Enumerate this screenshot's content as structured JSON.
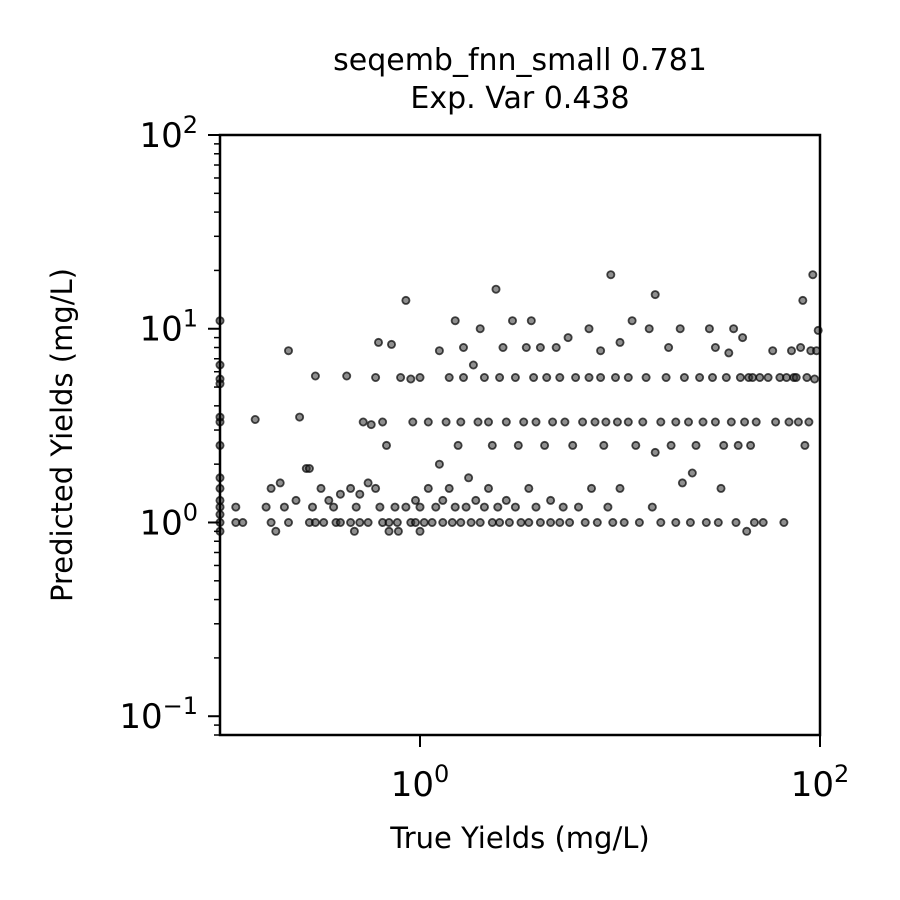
{
  "chart_data": {
    "type": "scatter",
    "title_line1": "seqemb_fnn_small 0.781",
    "title_line2": "Exp. Var 0.438",
    "xlabel": "True Yields (mg/L)",
    "ylabel": "Predicted Yields (mg/L)",
    "xscale": "log",
    "yscale": "log",
    "xlim": [
      0.1,
      100
    ],
    "ylim": [
      0.08,
      100
    ],
    "x_ticks": [
      {
        "base": "10",
        "exp": "0",
        "value": 1
      },
      {
        "base": "10",
        "exp": "2",
        "value": 100
      }
    ],
    "y_ticks": [
      {
        "base": "10",
        "exp": "−1",
        "value": 0.1
      },
      {
        "base": "10",
        "exp": "0",
        "value": 1
      },
      {
        "base": "10",
        "exp": "1",
        "value": 10
      },
      {
        "base": "10",
        "exp": "2",
        "value": 100
      }
    ],
    "grid": false,
    "marker_color": "#000000",
    "points": [
      [
        0.1,
        1.0
      ],
      [
        0.1,
        1.1
      ],
      [
        0.1,
        1.2
      ],
      [
        0.1,
        0.9
      ],
      [
        0.1,
        1.3
      ],
      [
        0.1,
        1.5
      ],
      [
        0.1,
        1.7
      ],
      [
        0.1,
        2.5
      ],
      [
        0.1,
        3.3
      ],
      [
        0.1,
        3.5
      ],
      [
        0.1,
        5.5
      ],
      [
        0.1,
        5.2
      ],
      [
        0.1,
        6.5
      ],
      [
        0.1,
        11.0
      ],
      [
        0.12,
        1.0
      ],
      [
        0.12,
        1.2
      ],
      [
        0.13,
        1.0
      ],
      [
        0.15,
        3.4
      ],
      [
        0.17,
        1.2
      ],
      [
        0.18,
        1.0
      ],
      [
        0.19,
        0.9
      ],
      [
        0.18,
        1.5
      ],
      [
        0.2,
        1.6
      ],
      [
        0.21,
        1.2
      ],
      [
        0.22,
        7.7
      ],
      [
        0.22,
        1.0
      ],
      [
        0.24,
        1.3
      ],
      [
        0.25,
        3.5
      ],
      [
        0.27,
        1.9
      ],
      [
        0.28,
        1.9
      ],
      [
        0.28,
        1.0
      ],
      [
        0.29,
        1.2
      ],
      [
        0.3,
        1.0
      ],
      [
        0.3,
        5.7
      ],
      [
        0.32,
        1.5
      ],
      [
        0.33,
        1.0
      ],
      [
        0.35,
        1.3
      ],
      [
        0.37,
        1.2
      ],
      [
        0.38,
        1.0
      ],
      [
        0.4,
        1.4
      ],
      [
        0.4,
        1.0
      ],
      [
        0.43,
        5.7
      ],
      [
        0.45,
        1.5
      ],
      [
        0.45,
        1.0
      ],
      [
        0.47,
        0.9
      ],
      [
        0.48,
        1.2
      ],
      [
        0.5,
        1.0
      ],
      [
        0.5,
        1.4
      ],
      [
        0.52,
        3.3
      ],
      [
        0.55,
        1.6
      ],
      [
        0.55,
        1.0
      ],
      [
        0.57,
        3.2
      ],
      [
        0.6,
        5.6
      ],
      [
        0.6,
        1.5
      ],
      [
        0.62,
        8.5
      ],
      [
        0.63,
        1.2
      ],
      [
        0.65,
        1.0
      ],
      [
        0.65,
        3.3
      ],
      [
        0.68,
        2.5
      ],
      [
        0.7,
        1.0
      ],
      [
        0.7,
        0.9
      ],
      [
        0.72,
        8.3
      ],
      [
        0.75,
        1.2
      ],
      [
        0.77,
        1.0
      ],
      [
        0.78,
        0.9
      ],
      [
        0.8,
        5.6
      ],
      [
        0.85,
        1.2
      ],
      [
        0.85,
        14.0
      ],
      [
        0.9,
        1.0
      ],
      [
        0.9,
        5.5
      ],
      [
        0.92,
        3.3
      ],
      [
        0.95,
        1.3
      ],
      [
        0.95,
        1.0
      ],
      [
        1.0,
        1.2
      ],
      [
        1.0,
        0.9
      ],
      [
        1.0,
        5.6
      ],
      [
        1.05,
        1.0
      ],
      [
        1.1,
        1.5
      ],
      [
        1.1,
        3.3
      ],
      [
        1.15,
        1.0
      ],
      [
        1.2,
        1.2
      ],
      [
        1.25,
        2.0
      ],
      [
        1.25,
        7.7
      ],
      [
        1.3,
        1.0
      ],
      [
        1.3,
        1.3
      ],
      [
        1.35,
        3.3
      ],
      [
        1.4,
        5.6
      ],
      [
        1.4,
        1.5
      ],
      [
        1.45,
        1.0
      ],
      [
        1.5,
        1.2
      ],
      [
        1.5,
        11.0
      ],
      [
        1.55,
        2.5
      ],
      [
        1.6,
        1.0
      ],
      [
        1.6,
        3.3
      ],
      [
        1.65,
        8.0
      ],
      [
        1.65,
        5.6
      ],
      [
        1.7,
        1.2
      ],
      [
        1.75,
        1.7
      ],
      [
        1.8,
        1.0
      ],
      [
        1.85,
        6.5
      ],
      [
        1.9,
        1.3
      ],
      [
        1.95,
        3.3
      ],
      [
        2.0,
        1.0
      ],
      [
        2.0,
        10.0
      ],
      [
        2.1,
        1.2
      ],
      [
        2.1,
        5.6
      ],
      [
        2.2,
        1.5
      ],
      [
        2.2,
        3.3
      ],
      [
        2.3,
        1.0
      ],
      [
        2.3,
        2.5
      ],
      [
        2.4,
        16.0
      ],
      [
        2.45,
        1.2
      ],
      [
        2.5,
        1.0
      ],
      [
        2.5,
        5.6
      ],
      [
        2.6,
        8.0
      ],
      [
        2.7,
        3.3
      ],
      [
        2.7,
        1.3
      ],
      [
        2.8,
        1.0
      ],
      [
        2.9,
        11.0
      ],
      [
        3.0,
        1.2
      ],
      [
        3.0,
        5.6
      ],
      [
        3.1,
        2.5
      ],
      [
        3.2,
        1.0
      ],
      [
        3.3,
        3.3
      ],
      [
        3.4,
        8.0
      ],
      [
        3.5,
        1.0
      ],
      [
        3.5,
        1.5
      ],
      [
        3.6,
        11.0
      ],
      [
        3.7,
        5.6
      ],
      [
        3.8,
        1.2
      ],
      [
        3.8,
        3.3
      ],
      [
        4.0,
        1.0
      ],
      [
        4.0,
        8.0
      ],
      [
        4.2,
        2.5
      ],
      [
        4.3,
        5.6
      ],
      [
        4.5,
        1.0
      ],
      [
        4.5,
        1.3
      ],
      [
        4.6,
        3.3
      ],
      [
        4.8,
        8.0
      ],
      [
        5.0,
        5.6
      ],
      [
        5.0,
        1.0
      ],
      [
        5.2,
        1.2
      ],
      [
        5.3,
        3.3
      ],
      [
        5.5,
        9.0
      ],
      [
        5.6,
        1.0
      ],
      [
        5.8,
        2.5
      ],
      [
        6.0,
        5.6
      ],
      [
        6.2,
        1.2
      ],
      [
        6.5,
        3.3
      ],
      [
        6.7,
        1.0
      ],
      [
        7.0,
        10.0
      ],
      [
        7.0,
        5.6
      ],
      [
        7.2,
        1.5
      ],
      [
        7.5,
        3.3
      ],
      [
        7.7,
        1.0
      ],
      [
        8.0,
        7.7
      ],
      [
        8.0,
        5.6
      ],
      [
        8.3,
        2.5
      ],
      [
        8.5,
        3.3
      ],
      [
        8.7,
        1.2
      ],
      [
        9.0,
        19.0
      ],
      [
        9.2,
        1.0
      ],
      [
        9.5,
        5.6
      ],
      [
        9.7,
        3.3
      ],
      [
        10.0,
        8.5
      ],
      [
        10.0,
        1.5
      ],
      [
        10.5,
        1.0
      ],
      [
        11.0,
        3.3
      ],
      [
        11.0,
        5.6
      ],
      [
        11.5,
        11.0
      ],
      [
        12.0,
        2.5
      ],
      [
        12.5,
        1.0
      ],
      [
        13.0,
        3.3
      ],
      [
        13.5,
        5.6
      ],
      [
        14.0,
        10.0
      ],
      [
        14.5,
        1.2
      ],
      [
        15.0,
        2.3
      ],
      [
        15.0,
        15.0
      ],
      [
        16.0,
        3.3
      ],
      [
        16.0,
        1.0
      ],
      [
        17.0,
        5.6
      ],
      [
        17.5,
        8.0
      ],
      [
        18.0,
        2.5
      ],
      [
        19.0,
        3.3
      ],
      [
        19.0,
        1.0
      ],
      [
        20.0,
        10.0
      ],
      [
        20.5,
        1.6
      ],
      [
        21.0,
        5.6
      ],
      [
        22.0,
        3.3
      ],
      [
        22.5,
        1.0
      ],
      [
        23.0,
        1.8
      ],
      [
        24.0,
        2.5
      ],
      [
        25.0,
        5.6
      ],
      [
        26.0,
        3.3
      ],
      [
        27.0,
        1.0
      ],
      [
        28.0,
        10.0
      ],
      [
        29.0,
        5.6
      ],
      [
        30.0,
        8.0
      ],
      [
        30.0,
        3.3
      ],
      [
        31.0,
        1.0
      ],
      [
        32.0,
        1.5
      ],
      [
        33.0,
        2.5
      ],
      [
        34.0,
        5.6
      ],
      [
        35.0,
        7.5
      ],
      [
        36.0,
        3.3
      ],
      [
        37.0,
        10.0
      ],
      [
        38.0,
        1.0
      ],
      [
        39.0,
        2.5
      ],
      [
        40.0,
        5.6
      ],
      [
        41.0,
        9.0
      ],
      [
        42.0,
        3.3
      ],
      [
        43.0,
        0.9
      ],
      [
        44.0,
        5.6
      ],
      [
        45.0,
        2.5
      ],
      [
        46.0,
        5.6
      ],
      [
        47.0,
        1.0
      ],
      [
        48.0,
        3.3
      ],
      [
        50.0,
        5.6
      ],
      [
        52.0,
        1.0
      ],
      [
        55.0,
        5.6
      ],
      [
        58.0,
        7.7
      ],
      [
        60.0,
        3.3
      ],
      [
        63.0,
        5.6
      ],
      [
        66.0,
        1.0
      ],
      [
        68.0,
        5.6
      ],
      [
        70.0,
        3.3
      ],
      [
        72.0,
        7.7
      ],
      [
        74.0,
        5.6
      ],
      [
        76.0,
        5.6
      ],
      [
        78.0,
        3.3
      ],
      [
        80.0,
        8.0
      ],
      [
        82.0,
        14.0
      ],
      [
        84.0,
        2.5
      ],
      [
        86.0,
        5.6
      ],
      [
        88.0,
        3.3
      ],
      [
        90.0,
        7.7
      ],
      [
        92.0,
        19.0
      ],
      [
        94.0,
        5.5
      ],
      [
        96.0,
        7.7
      ],
      [
        98.0,
        9.8
      ]
    ]
  }
}
